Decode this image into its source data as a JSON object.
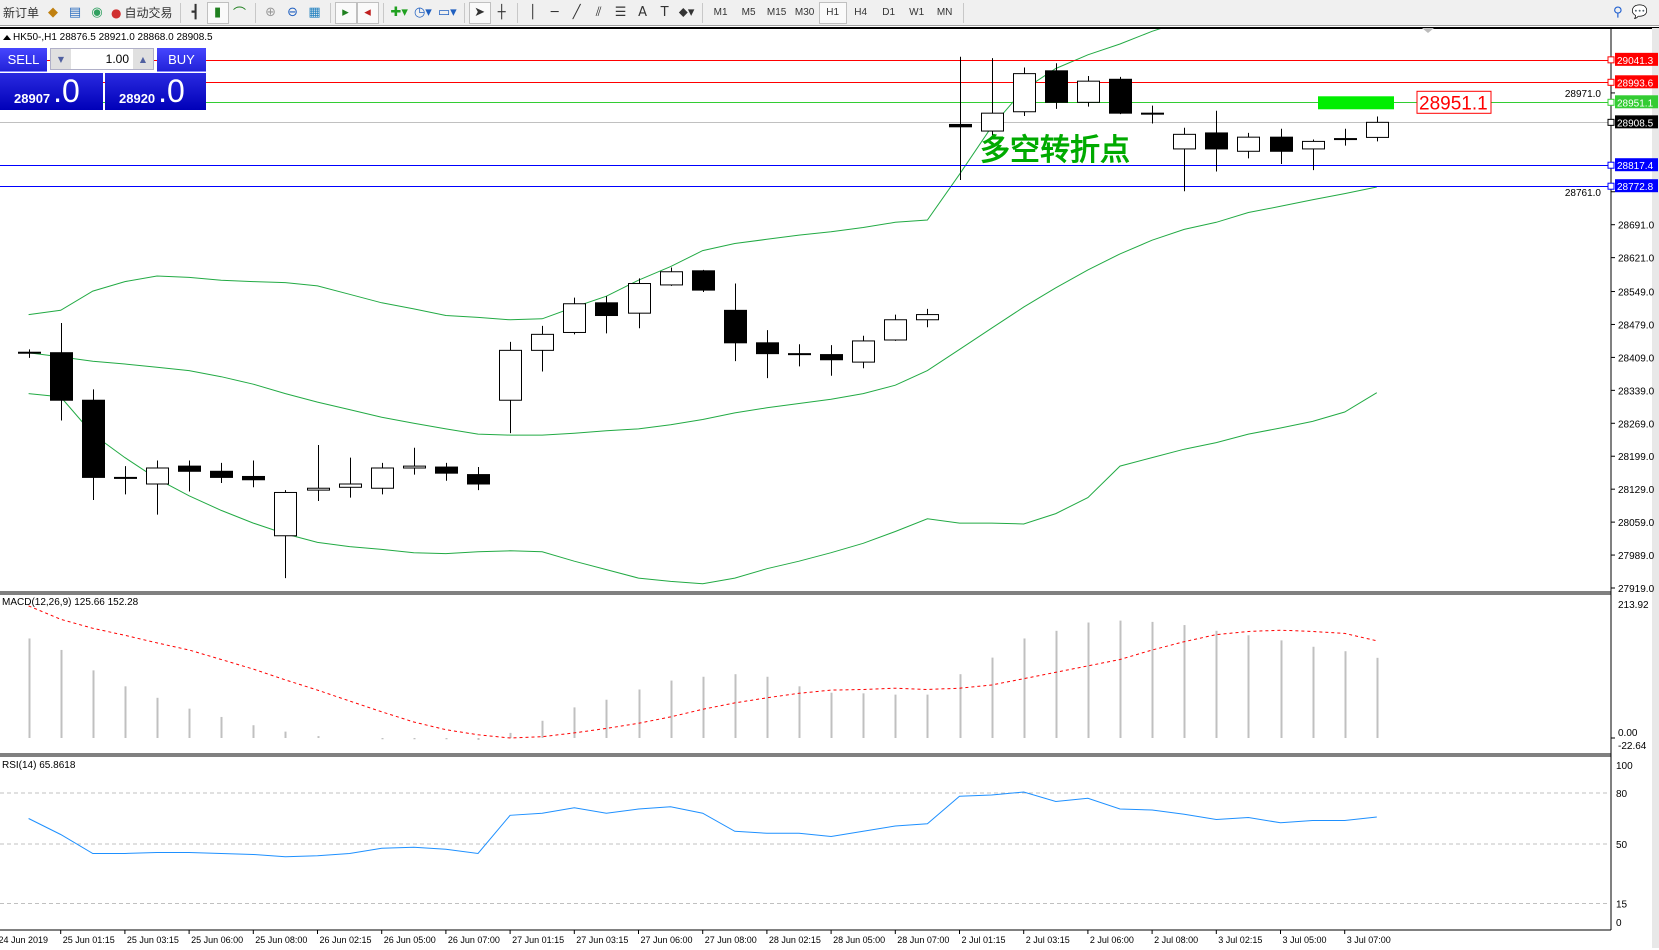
{
  "toolbar": {
    "new_order": "新订单",
    "auto_trading": "自动交易",
    "timeframes": [
      "M1",
      "M5",
      "M15",
      "M30",
      "H1",
      "H4",
      "D1",
      "W1",
      "MN"
    ],
    "active_timeframe": "H1"
  },
  "chart": {
    "info": "HK50-,H1  28876.5 28921.0 28868.0 28908.5",
    "annotation_text": "多空转折点",
    "annotation_color": "#00aa00",
    "price_label": "28951.1",
    "colors": {
      "bull": "#ffffff",
      "bear": "#000000",
      "bands": "#22aa44",
      "macd_hist": "#c0c0c0",
      "macd_signal": "#ff0000",
      "rsi": "#1e90ff"
    }
  },
  "one_click": {
    "sell_label": "SELL",
    "buy_label": "BUY",
    "lot": "1.00",
    "sell_price_main": "28907",
    "sell_price_frac": ".0",
    "buy_price_main": "28920",
    "buy_price_frac": ".0"
  },
  "hlines": [
    {
      "price": 29041.3,
      "label": "29041.3",
      "color": "#ff0000"
    },
    {
      "price": 28993.6,
      "label": "28993.6",
      "color": "#ff0000"
    },
    {
      "price": 28951.1,
      "label": "28951.1",
      "color": "#33cc33"
    },
    {
      "price": 28908.5,
      "label": "28908.5",
      "color": "#000000",
      "line": "#c0c0c0"
    },
    {
      "price": 28817.4,
      "label": "28817.4",
      "color": "#0000ff"
    },
    {
      "price": 28772.8,
      "label": "28772.8",
      "color": "#0000ff"
    }
  ],
  "price_ticks": [
    "28971.0",
    "28761.0",
    "28691.0",
    "28621.0",
    "28549.0",
    "28479.0",
    "28409.0",
    "28339.0",
    "28269.0",
    "28199.0",
    "28129.0",
    "28059.0",
    "27989.0",
    "27919.0"
  ],
  "time_labels": [
    "24 Jun 2019",
    "25 Jun 01:15",
    "25 Jun 03:15",
    "25 Jun 06:00",
    "25 Jun 08:00",
    "26 Jun 02:15",
    "26 Jun 05:00",
    "26 Jun 07:00",
    "27 Jun 01:15",
    "27 Jun 03:15",
    "27 Jun 06:00",
    "27 Jun 08:00",
    "28 Jun 02:15",
    "28 Jun 05:00",
    "28 Jun 07:00",
    "2 Jul 01:15",
    "2 Jul 03:15",
    "2 Jul 06:00",
    "2 Jul 08:00",
    "3 Jul 02:15",
    "3 Jul 05:00",
    "3 Jul 07:00"
  ],
  "macd": {
    "label": "MACD(12,26,9) 125.66 152.28",
    "max_label": "213.92",
    "zero_label": "0.00",
    "min_label": "-22.64"
  },
  "rsi": {
    "label": "RSI(14) 65.8618",
    "levels": [
      "100",
      "80",
      "50",
      "15",
      "0"
    ]
  },
  "chart_data": {
    "type": "candlestick",
    "symbol": "HK50-",
    "timeframe": "H1",
    "ylim": [
      27919,
      29100
    ],
    "ohlc": [
      [
        28419,
        28426,
        28408,
        28420
      ],
      [
        28419,
        28482,
        28275,
        28318
      ],
      [
        28318,
        28341,
        28106,
        28154
      ],
      [
        28154,
        28178,
        28118,
        28154
      ],
      [
        28140,
        28190,
        28075,
        28174
      ],
      [
        28178,
        28190,
        28124,
        28167
      ],
      [
        28167,
        28185,
        28142,
        28154
      ],
      [
        28156,
        28190,
        28133,
        28149
      ],
      [
        28030,
        28127,
        27940,
        28122
      ],
      [
        28127,
        28223,
        28104,
        28131
      ],
      [
        28133,
        28196,
        28111,
        28140
      ],
      [
        28131,
        28185,
        28118,
        28174
      ],
      [
        28174,
        28217,
        28160,
        28178
      ],
      [
        28176,
        28185,
        28147,
        28163
      ],
      [
        28160,
        28176,
        28127,
        28140
      ],
      [
        28318,
        28442,
        28248,
        28424
      ],
      [
        28424,
        28476,
        28379,
        28458
      ],
      [
        28462,
        28536,
        28458,
        28523
      ],
      [
        28525,
        28539,
        28460,
        28498
      ],
      [
        28503,
        28577,
        28471,
        28566
      ],
      [
        28563,
        28600,
        28561,
        28591
      ],
      [
        28593,
        28595,
        28548,
        28552
      ],
      [
        28509,
        28566,
        28401,
        28440
      ],
      [
        28440,
        28467,
        28365,
        28417
      ],
      [
        28417,
        28437,
        28390,
        28417
      ],
      [
        28415,
        28435,
        28370,
        28404
      ],
      [
        28399,
        28455,
        28386,
        28444
      ],
      [
        28446,
        28500,
        28444,
        28489
      ],
      [
        28489,
        28512,
        28473,
        28500
      ],
      [
        28904,
        29048,
        28786,
        28899
      ],
      [
        28890,
        29045,
        28881,
        28928
      ],
      [
        28931,
        29025,
        28922,
        29012
      ],
      [
        29018,
        29034,
        28937,
        28951
      ],
      [
        28951,
        29007,
        28942,
        28996
      ],
      [
        29000,
        29005,
        28926,
        28928
      ],
      [
        28928,
        28944,
        28906,
        28928
      ],
      [
        28852,
        28897,
        28762,
        28883
      ],
      [
        28886,
        28933,
        28804,
        28852
      ],
      [
        28847,
        28886,
        28832,
        28877
      ],
      [
        28877,
        28895,
        28820,
        28847
      ],
      [
        28852,
        28872,
        28807,
        28868
      ],
      [
        28874,
        28895,
        28859,
        28874
      ],
      [
        28876.5,
        28921,
        28868,
        28908.5
      ]
    ],
    "bollinger_upper": [
      28500,
      28509,
      28550,
      28570,
      28582,
      28579,
      28573,
      28570,
      28568,
      28561,
      28543,
      28525,
      28512,
      28498,
      28494,
      28489,
      28491,
      28516,
      28539,
      28573,
      28602,
      28636,
      28651,
      28660,
      28669,
      28676,
      28685,
      28696,
      28701,
      28798,
      28899,
      28978,
      29023,
      29052,
      29075,
      29102,
      29124,
      29142,
      29158,
      29169,
      29181,
      29192,
      29203
    ],
    "bollinger_middle": [
      28419,
      28410,
      28401,
      28395,
      28388,
      28381,
      28368,
      28352,
      28332,
      28314,
      28298,
      28282,
      28269,
      28257,
      28246,
      28244,
      28244,
      28248,
      28253,
      28257,
      28266,
      28277,
      28291,
      28302,
      28311,
      28320,
      28332,
      28350,
      28381,
      28426,
      28471,
      28516,
      28557,
      28595,
      28629,
      28658,
      28681,
      28696,
      28717,
      28730,
      28744,
      28757,
      28771
    ],
    "bollinger_lower": [
      28332,
      28325,
      28246,
      28196,
      28151,
      28115,
      28084,
      28057,
      28034,
      28016,
      28007,
      28001,
      27994,
      27992,
      27996,
      27998,
      27996,
      27976,
      27958,
      27940,
      27933,
      27928,
      27940,
      27960,
      27976,
      27994,
      28014,
      28039,
      28066,
      28057,
      28057,
      28055,
      28077,
      28111,
      28178,
      28196,
      28214,
      28228,
      28246,
      28259,
      28273,
      28293,
      28334
    ],
    "macd_hist": [
      156,
      138,
      106,
      81,
      63,
      46,
      33,
      20,
      10,
      3,
      0,
      -2,
      -2,
      -2,
      -3,
      8,
      27,
      48,
      60,
      76,
      90,
      96,
      100,
      96,
      81,
      71,
      70,
      68,
      68,
      100,
      126,
      156,
      168,
      181,
      184,
      182,
      177,
      168,
      161,
      153,
      143,
      136,
      125.66
    ],
    "macd_signal": [
      207,
      186,
      172,
      161,
      149,
      138,
      123,
      108,
      91,
      75,
      58,
      41,
      25,
      13,
      5,
      0,
      2,
      8,
      15,
      23,
      33,
      45,
      55,
      63,
      70,
      75,
      76,
      78,
      76,
      78,
      83,
      93,
      103,
      113,
      123,
      138,
      151,
      162,
      167,
      169,
      167,
      164,
      152.28
    ],
    "macd_ylim": [
      -22.64,
      213.92
    ],
    "rsi": [
      65,
      55.6,
      44.4,
      44.4,
      45,
      45,
      44.4,
      43.8,
      42.5,
      43.1,
      44.4,
      47.5,
      48.1,
      46.9,
      44.4,
      66.9,
      68.1,
      71.3,
      68.1,
      70.6,
      71.9,
      68.1,
      57.5,
      56.3,
      56.3,
      54.4,
      57.5,
      60.6,
      61.9,
      78.1,
      78.8,
      80.6,
      75,
      76.9,
      70.6,
      70,
      67.5,
      64.4,
      65.6,
      62.5,
      63.8,
      63.8,
      65.86
    ],
    "rsi_levels": [
      80,
      50,
      15
    ],
    "marked_zone": {
      "price": 28951.1,
      "color": "#00ee00"
    }
  }
}
